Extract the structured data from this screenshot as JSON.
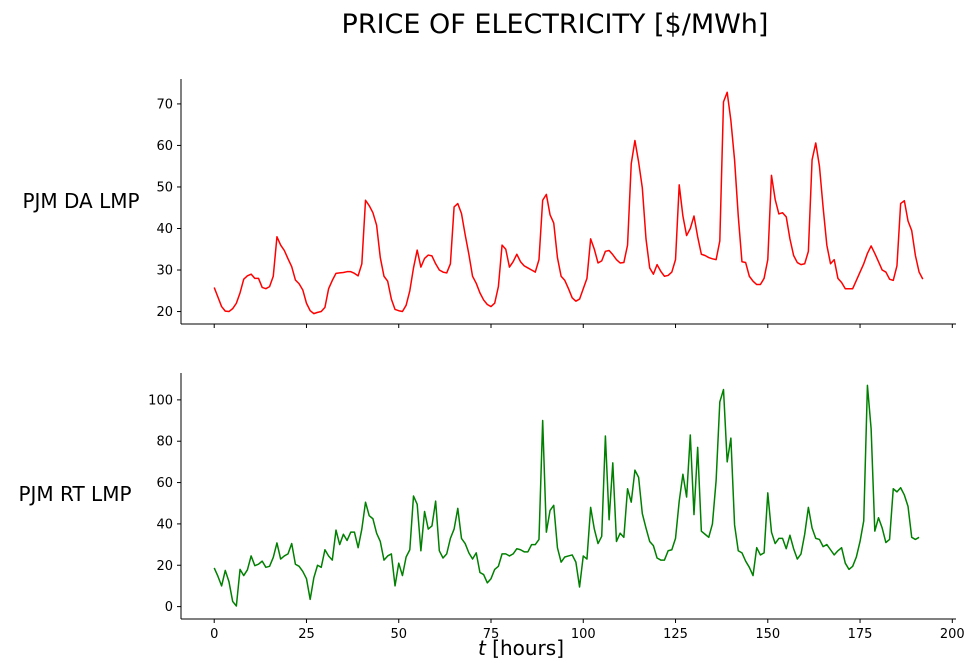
{
  "title": "PRICE OF ELECTRICITY [$/MWh]",
  "xlabel_var": "t",
  "xlabel_unit": " [hours]",
  "chart_data": [
    {
      "type": "line",
      "ylabel": "PJM DA LMP",
      "color": "#ff0000",
      "xlim": [
        -9,
        201
      ],
      "ylim": [
        17,
        76
      ],
      "xticks": [
        0,
        25,
        50,
        75,
        100,
        125,
        150,
        175,
        200
      ],
      "yticks": [
        20,
        30,
        40,
        50,
        60,
        70
      ],
      "grid": false,
      "show_xtick_labels": false,
      "series": [
        {
          "x_start": 0,
          "x_step": 1,
          "values": [
            25.8,
            23.5,
            21.2,
            20.1,
            20.0,
            20.7,
            22.0,
            24.5,
            27.8,
            28.6,
            29.0,
            28.0,
            28.0,
            25.8,
            25.5,
            26.0,
            28.5,
            38.0,
            36.0,
            34.7,
            32.7,
            30.8,
            27.6,
            26.7,
            25.2,
            22.0,
            20.2,
            19.5,
            19.8,
            20.0,
            21.0,
            25.5,
            27.5,
            29.2,
            29.3,
            29.4,
            29.6,
            29.6,
            29.2,
            28.6,
            31.5,
            46.8,
            45.5,
            43.8,
            40.8,
            33.0,
            28.5,
            27.3,
            23.0,
            20.5,
            20.2,
            20.0,
            21.5,
            25.0,
            30.5,
            34.8,
            30.7,
            32.8,
            33.6,
            33.4,
            31.5,
            30.0,
            29.5,
            29.3,
            31.5,
            45.2,
            46.0,
            43.6,
            38.5,
            33.8,
            28.5,
            26.8,
            24.5,
            22.8,
            21.7,
            21.2,
            22.0,
            26.0,
            36.0,
            35.0,
            30.7,
            32.0,
            33.8,
            32.0,
            31.0,
            30.5,
            30.0,
            29.5,
            32.5,
            46.8,
            48.2,
            43.3,
            41.3,
            33.0,
            28.5,
            27.5,
            25.5,
            23.3,
            22.5,
            23.0,
            25.5,
            28.0,
            37.5,
            35.0,
            31.7,
            32.2,
            34.5,
            34.7,
            33.7,
            32.5,
            31.7,
            31.8,
            36.0,
            55.6,
            61.2,
            56.0,
            49.8,
            37.5,
            30.5,
            29.0,
            31.3,
            29.7,
            28.5,
            28.7,
            29.5,
            32.5,
            50.5,
            43.0,
            38.3,
            40.0,
            43.0,
            38.0,
            33.8,
            33.5,
            33.0,
            32.7,
            32.5,
            37.0,
            70.5,
            72.8,
            66.0,
            56.5,
            43.0,
            32.0,
            31.8,
            28.5,
            27.3,
            26.5,
            26.5,
            28.0,
            32.5,
            52.8,
            47.0,
            43.5,
            43.8,
            42.8,
            37.5,
            33.5,
            31.8,
            31.3,
            31.5,
            34.5,
            56.5,
            60.6,
            55.0,
            45.0,
            36.0,
            31.5,
            32.5,
            28.0,
            27.0,
            25.5,
            25.5,
            25.5,
            27.5,
            29.5,
            31.5,
            34.0,
            35.8,
            34.0,
            32.0,
            30.0,
            29.5,
            27.8,
            27.5,
            31.0,
            46.0,
            46.7,
            41.8,
            39.5,
            33.5,
            29.5,
            27.8
          ]
        }
      ]
    },
    {
      "type": "line",
      "ylabel": "PJM RT LMP",
      "color": "#008000",
      "xlim": [
        -9,
        201
      ],
      "ylim": [
        -6,
        113
      ],
      "xticks": [
        0,
        25,
        50,
        75,
        100,
        125,
        150,
        175,
        200
      ],
      "yticks": [
        0,
        20,
        40,
        60,
        80,
        100
      ],
      "grid": false,
      "show_xtick_labels": true,
      "series": [
        {
          "x_start": 0,
          "x_step": 1,
          "values": [
            18.7,
            14.7,
            10.0,
            17.5,
            12.0,
            2.5,
            0.3,
            18.0,
            15.0,
            17.8,
            24.5,
            19.8,
            20.5,
            22.0,
            19.0,
            19.5,
            23.8,
            30.8,
            23.0,
            24.5,
            25.5,
            30.5,
            20.5,
            19.5,
            17.0,
            13.5,
            3.5,
            14.0,
            20.0,
            19.0,
            27.5,
            24.5,
            22.5,
            37.0,
            30.0,
            35.0,
            32.0,
            36.0,
            36.0,
            28.5,
            37.5,
            50.5,
            44.0,
            42.5,
            35.5,
            31.5,
            22.5,
            24.5,
            25.5,
            10.0,
            21.0,
            15.0,
            24.0,
            27.5,
            53.5,
            49.5,
            27.0,
            46.0,
            37.5,
            39.0,
            51.0,
            27.0,
            23.5,
            25.5,
            33.0,
            37.5,
            47.5,
            33.0,
            30.5,
            26.0,
            23.0,
            26.0,
            16.5,
            15.5,
            11.5,
            13.5,
            18.0,
            19.5,
            25.5,
            25.5,
            24.5,
            25.5,
            28.0,
            27.5,
            26.5,
            26.5,
            30.0,
            30.0,
            32.5,
            90.0,
            36.0,
            46.5,
            49.0,
            28.5,
            21.5,
            24.0,
            24.5,
            25.0,
            21.5,
            9.5,
            24.5,
            23.0,
            48.0,
            37.5,
            30.5,
            34.0,
            82.5,
            42.0,
            69.5,
            31.5,
            35.5,
            33.5,
            57.0,
            50.5,
            66.0,
            62.5,
            45.0,
            38.0,
            31.5,
            29.5,
            23.5,
            22.5,
            22.5,
            27.0,
            27.5,
            33.0,
            51.0,
            64.0,
            53.0,
            83.0,
            44.5,
            77.0,
            36.5,
            35.0,
            33.5,
            40.0,
            61.0,
            99.0,
            105.0,
            70.0,
            81.5,
            39.5,
            27.0,
            26.0,
            22.0,
            19.0,
            15.0,
            28.5,
            25.0,
            26.0,
            55.0,
            36.0,
            30.5,
            33.0,
            33.0,
            28.0,
            34.5,
            28.0,
            23.0,
            25.5,
            35.0,
            48.0,
            38.0,
            33.0,
            32.5,
            29.0,
            30.0,
            27.5,
            25.0,
            27.0,
            28.5,
            21.0,
            18.0,
            19.5,
            24.0,
            31.5,
            41.5,
            107.0,
            86.0,
            36.5,
            43.0,
            38.0,
            31.0,
            32.5,
            57.0,
            55.5,
            57.5,
            54.0,
            48.5,
            33.5,
            32.5,
            33.5
          ]
        }
      ]
    }
  ]
}
